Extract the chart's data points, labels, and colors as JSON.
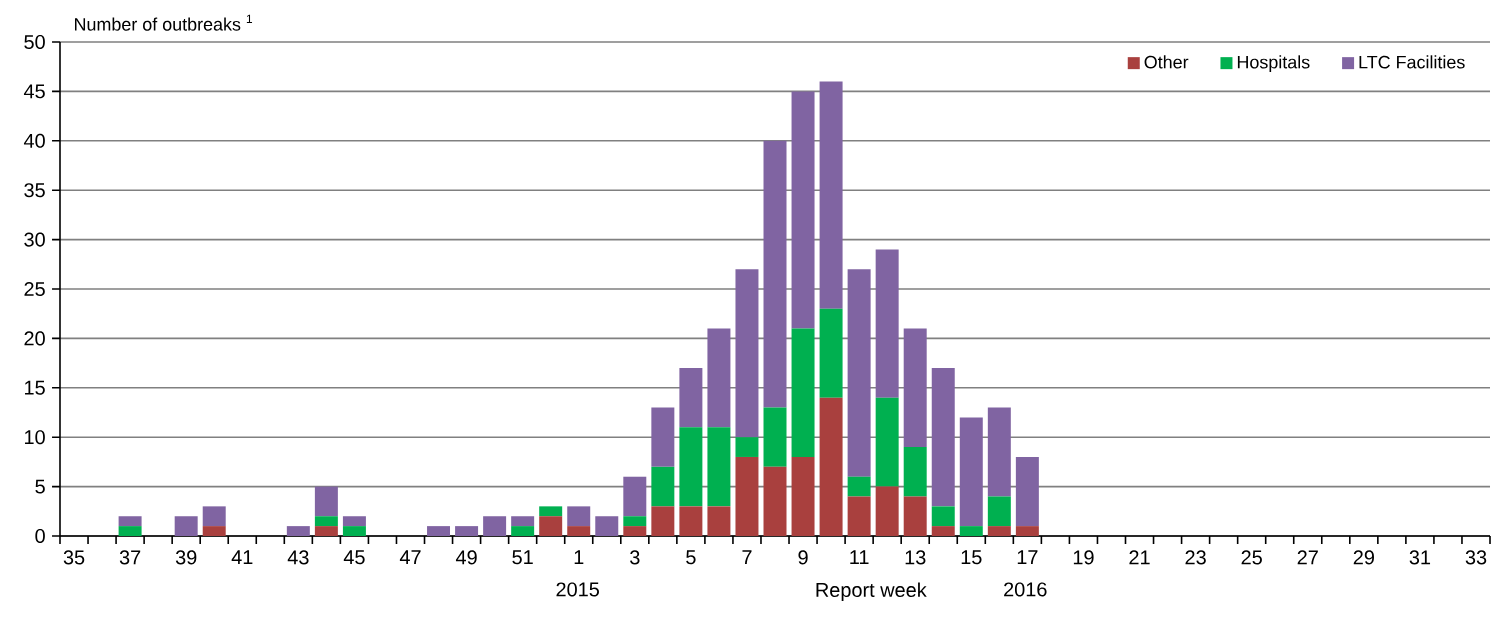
{
  "chart_data": {
    "type": "bar",
    "stacked": true,
    "ylabel": "Number of outbreaks $^{1}$",
    "categories": [
      "35",
      null,
      "37",
      null,
      "39",
      null,
      "41",
      null,
      "43",
      null,
      "45",
      null,
      "47",
      null,
      "49",
      null,
      "51",
      null,
      "1",
      null,
      "3",
      null,
      "5",
      null,
      "7",
      null,
      "9",
      null,
      "11",
      null,
      "13",
      null,
      "15",
      null,
      "17",
      null,
      "19",
      null,
      "21",
      null,
      "23",
      null,
      "25",
      null,
      "27",
      null,
      "29",
      null,
      "31",
      null,
      "33"
    ],
    "series": [
      {
        "name": "Other",
        "color": "#a9403e",
        "values": [
          0,
          0,
          0,
          0,
          0,
          1,
          0,
          0,
          0,
          1,
          0,
          0,
          0,
          0,
          0,
          0,
          0,
          2,
          1,
          0,
          1,
          3,
          3,
          3,
          8,
          7,
          8,
          14,
          4,
          5,
          4,
          1,
          0,
          1,
          1,
          0,
          0,
          0,
          0,
          0,
          0,
          0,
          0,
          0,
          0,
          0,
          0,
          0,
          0,
          0,
          0
        ]
      },
      {
        "name": "Hospitals",
        "color": "#00b050",
        "values": [
          0,
          0,
          1,
          0,
          0,
          0,
          0,
          0,
          0,
          1,
          1,
          0,
          0,
          0,
          0,
          0,
          1,
          1,
          0,
          0,
          1,
          4,
          8,
          8,
          2,
          6,
          13,
          9,
          2,
          9,
          5,
          2,
          1,
          3,
          0,
          0,
          0,
          0,
          0,
          0,
          0,
          0,
          0,
          0,
          0,
          0,
          0,
          0,
          0,
          0,
          0
        ]
      },
      {
        "name": "LTC Facilities",
        "color": "#8064a2",
        "values": [
          0,
          0,
          1,
          0,
          2,
          2,
          0,
          0,
          1,
          3,
          1,
          0,
          0,
          1,
          1,
          2,
          1,
          0,
          2,
          2,
          4,
          6,
          6,
          10,
          17,
          27,
          24,
          23,
          21,
          15,
          12,
          14,
          11,
          9,
          7,
          0,
          0,
          0,
          0,
          0,
          0,
          0,
          0,
          0,
          0,
          0,
          0,
          0,
          0,
          0,
          0
        ]
      }
    ],
    "ylim": [
      0,
      50
    ],
    "yticks": [
      0,
      5,
      10,
      15,
      20,
      25,
      30,
      35,
      40,
      45,
      50
    ],
    "grid": "y",
    "legend": "top right",
    "annotations": [
      "2015",
      "Report week",
      "2016"
    ]
  }
}
